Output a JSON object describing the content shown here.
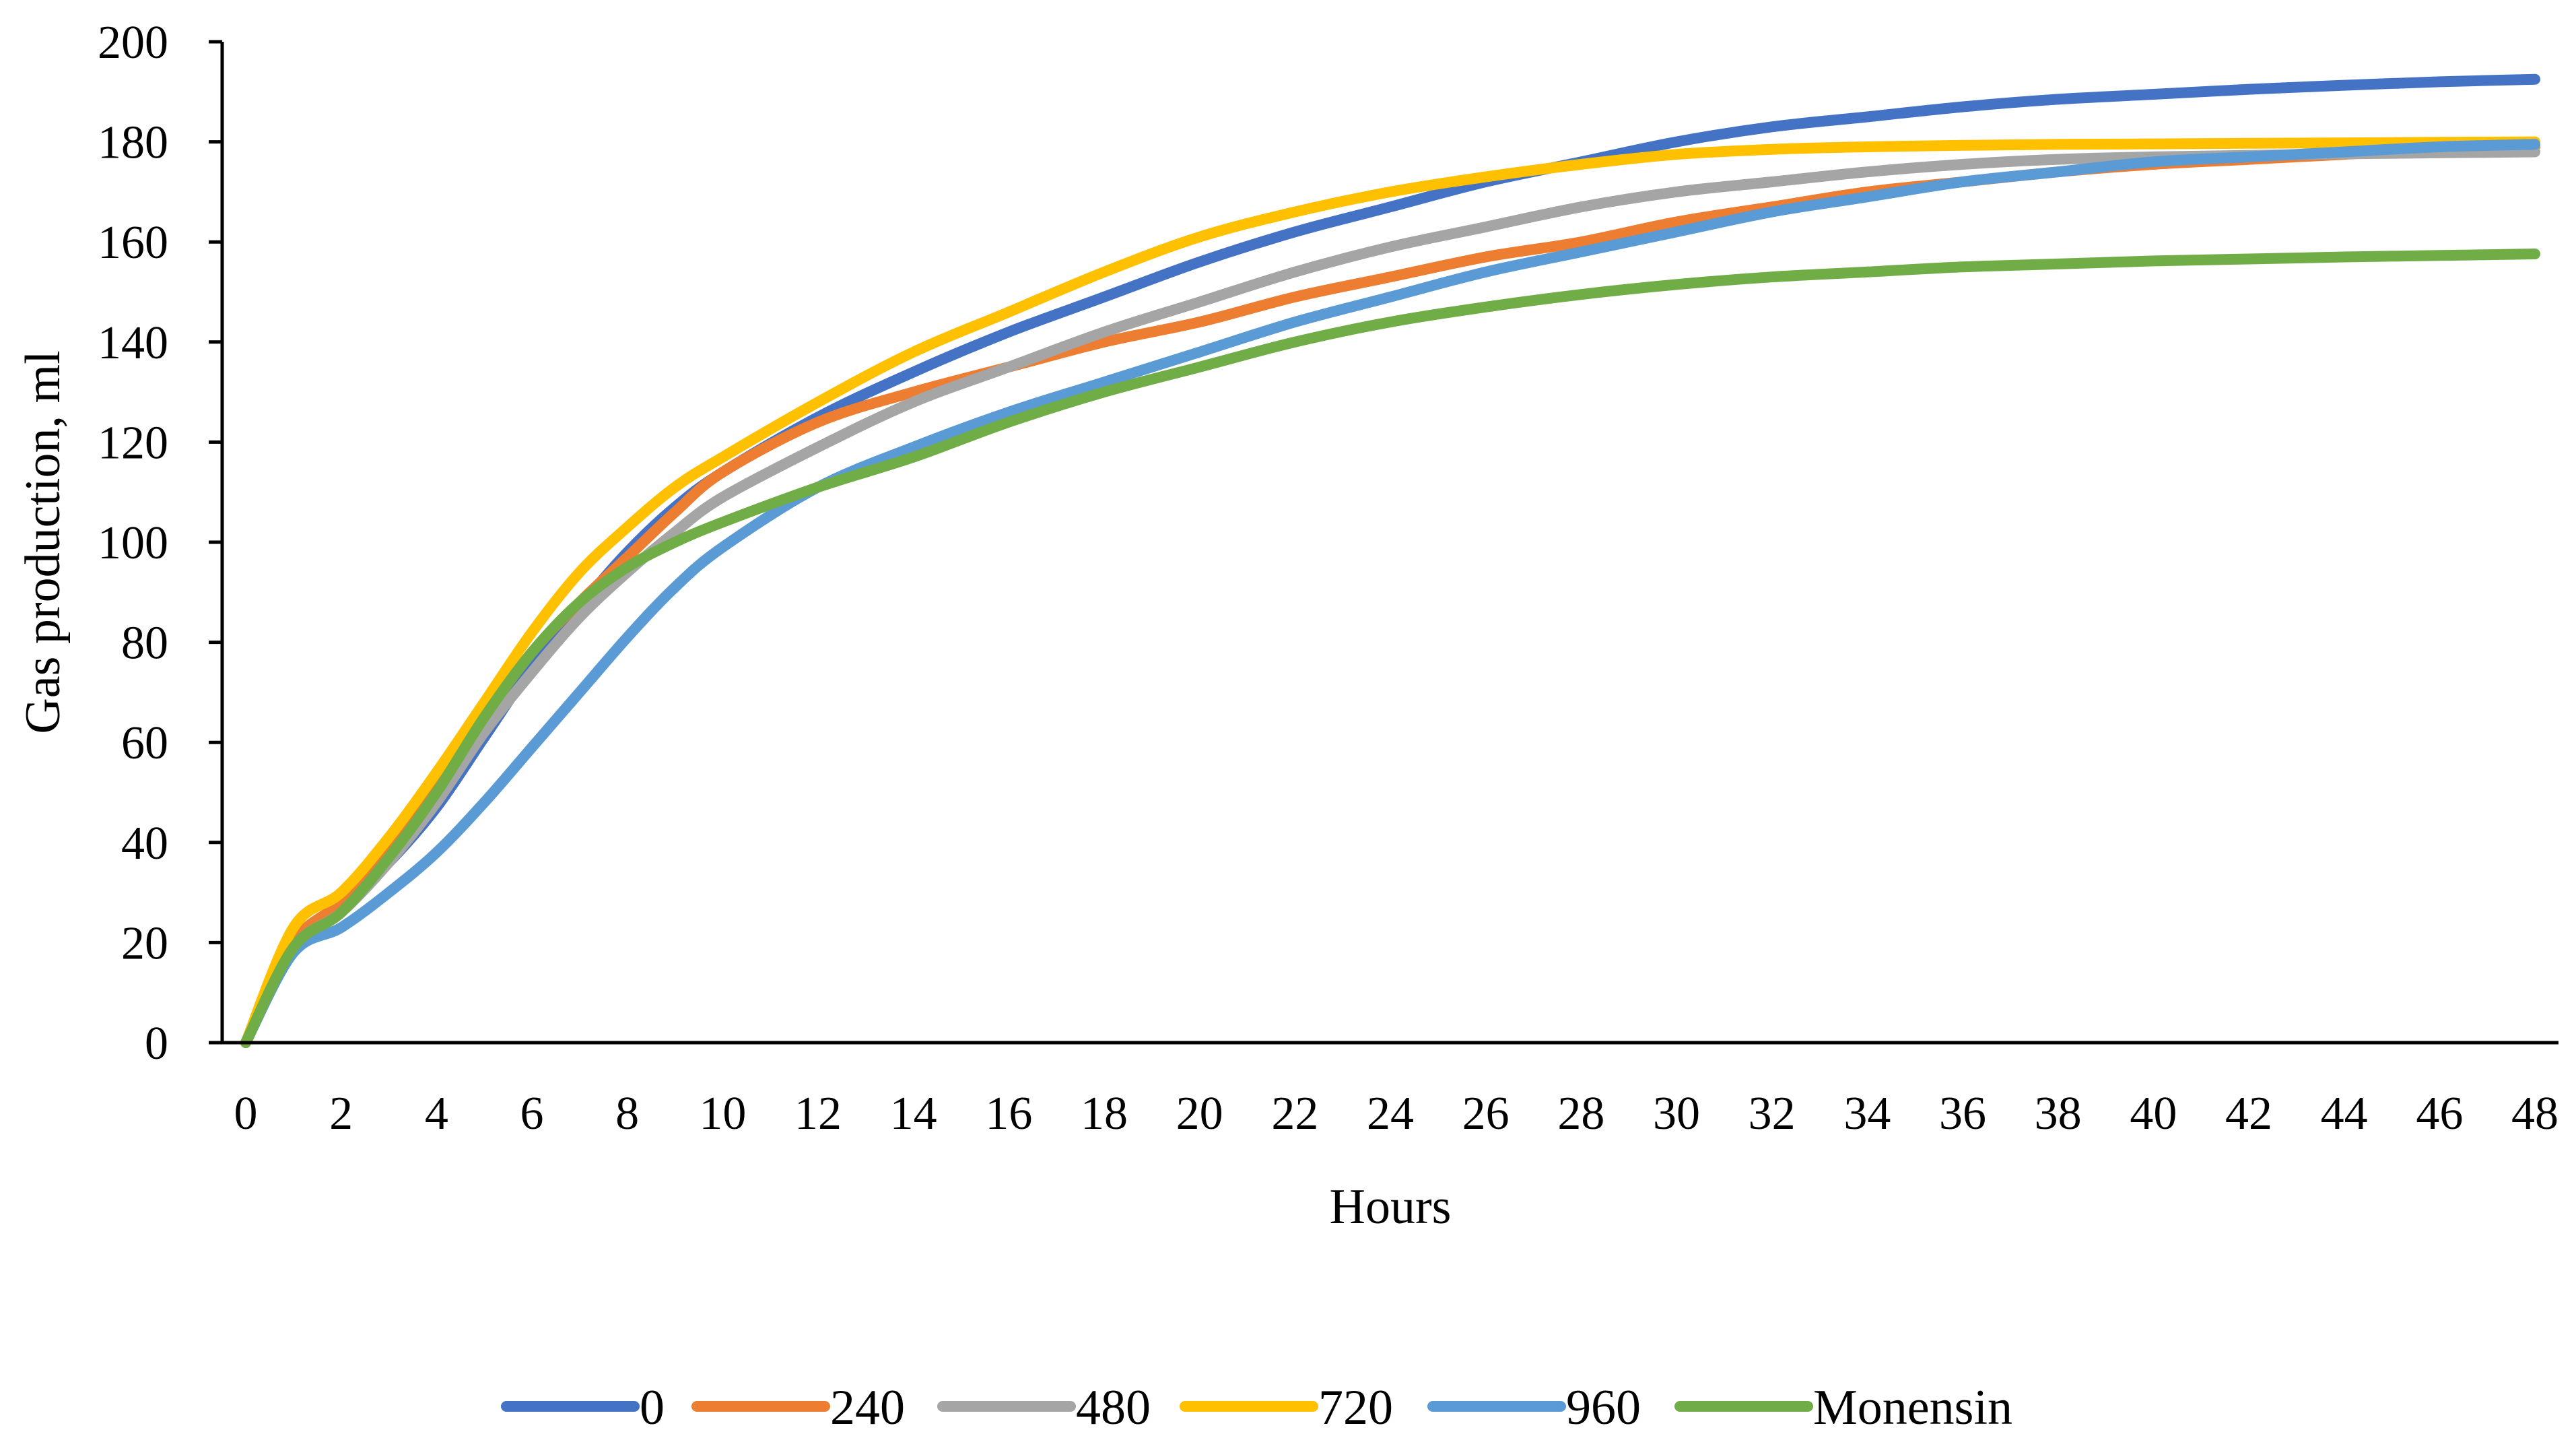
{
  "chart_data": {
    "type": "line",
    "title": "",
    "xlabel": "Hours",
    "ylabel": "Gas production, ml",
    "xlim": [
      0,
      48
    ],
    "ylim": [
      0,
      200
    ],
    "x_ticks": [
      "0",
      "2",
      "4",
      "6",
      "8",
      "10",
      "12",
      "14",
      "16",
      "18",
      "20",
      "22",
      "24",
      "26",
      "28",
      "30",
      "32",
      "34",
      "36",
      "38",
      "40",
      "42",
      "44",
      "46",
      "48"
    ],
    "y_ticks": [
      "0",
      "20",
      "40",
      "60",
      "80",
      "100",
      "120",
      "140",
      "160",
      "180",
      "200"
    ],
    "grid": false,
    "legend_position": "bottom",
    "series": [
      {
        "name": "0",
        "color": "#4472C4",
        "x": [
          0,
          1,
          2,
          3,
          4,
          5,
          6,
          7,
          8,
          9,
          10,
          12,
          14,
          16,
          18,
          20,
          22,
          24,
          26,
          28,
          30,
          32,
          34,
          36,
          38,
          40,
          42,
          44,
          46,
          48
        ],
        "values": [
          0,
          20,
          27,
          36,
          47,
          61,
          75,
          87,
          98,
          107,
          114,
          125,
          134,
          142,
          149,
          156,
          162,
          167,
          172,
          176,
          180,
          183,
          185,
          187,
          188.5,
          189.5,
          190.5,
          191.3,
          192,
          192.5
        ]
      },
      {
        "name": "240",
        "color": "#ED7D31",
        "x": [
          0,
          1,
          2,
          3,
          4,
          5,
          6,
          7,
          8,
          9,
          10,
          12,
          14,
          16,
          18,
          20,
          22,
          24,
          26,
          28,
          30,
          32,
          34,
          36,
          38,
          40,
          42,
          44,
          46,
          48
        ],
        "values": [
          0,
          20,
          28,
          38,
          51,
          65,
          78,
          88,
          97,
          106,
          114,
          124,
          130,
          135,
          140,
          144,
          149,
          153,
          157,
          160,
          164,
          167,
          170,
          172,
          174,
          175.5,
          176.5,
          177.5,
          178.5,
          179
        ]
      },
      {
        "name": "480",
        "color": "#A5A5A5",
        "x": [
          0,
          1,
          2,
          3,
          4,
          5,
          6,
          7,
          8,
          9,
          10,
          12,
          14,
          16,
          18,
          20,
          22,
          24,
          26,
          28,
          30,
          32,
          34,
          36,
          38,
          40,
          42,
          44,
          46,
          48
        ],
        "values": [
          0,
          19,
          26,
          36,
          48,
          62,
          74,
          85,
          94,
          102,
          109,
          119,
          128,
          135,
          142,
          148,
          154,
          159,
          163,
          167,
          170,
          172,
          174,
          175.5,
          176.5,
          177,
          177.3,
          177.6,
          177.8,
          178
        ]
      },
      {
        "name": "720",
        "color": "#FFC000",
        "x": [
          0,
          1,
          2,
          3,
          4,
          5,
          6,
          7,
          8,
          9,
          10,
          12,
          14,
          16,
          18,
          20,
          22,
          24,
          26,
          28,
          30,
          32,
          34,
          36,
          38,
          40,
          42,
          44,
          46,
          48
        ],
        "values": [
          0,
          23,
          30,
          41,
          54,
          68,
          82,
          94,
          103,
          111,
          117,
          128,
          138,
          146,
          154,
          161,
          166,
          170,
          173,
          175.5,
          177.5,
          178.5,
          179,
          179.3,
          179.5,
          179.6,
          179.7,
          179.8,
          179.9,
          180
        ]
      },
      {
        "name": "960",
        "color": "#5B9BD5",
        "x": [
          0,
          1,
          2,
          3,
          4,
          5,
          6,
          7,
          8,
          9,
          10,
          12,
          14,
          16,
          18,
          20,
          22,
          24,
          26,
          28,
          30,
          32,
          34,
          36,
          38,
          40,
          42,
          44,
          46,
          48
        ],
        "values": [
          0,
          18,
          23,
          30,
          38,
          48,
          59,
          70,
          81,
          91,
          99,
          111,
          119,
          126,
          132,
          138,
          144,
          149,
          154,
          158,
          162,
          166,
          169,
          172,
          174,
          176,
          177,
          178,
          179,
          179.5
        ]
      },
      {
        "name": "Monensin",
        "color": "#70AD47",
        "x": [
          0,
          1,
          2,
          3,
          4,
          5,
          6,
          7,
          8,
          9,
          10,
          12,
          14,
          16,
          18,
          20,
          22,
          24,
          26,
          28,
          30,
          32,
          34,
          36,
          38,
          40,
          42,
          44,
          46,
          48
        ],
        "values": [
          0,
          19,
          26,
          37,
          50,
          65,
          78,
          88,
          95,
          100,
          104,
          111,
          117,
          124,
          130,
          135,
          140,
          144,
          147,
          149.5,
          151.5,
          153,
          154,
          155,
          155.6,
          156.2,
          156.6,
          157,
          157.3,
          157.6
        ]
      }
    ]
  }
}
